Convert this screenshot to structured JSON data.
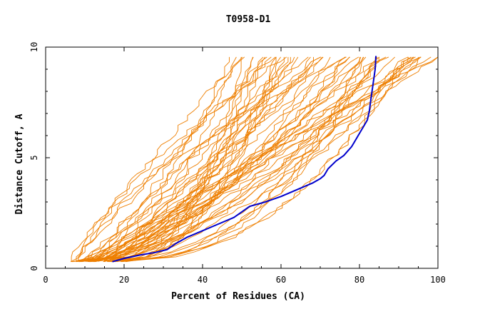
{
  "chart_data": {
    "type": "line",
    "title": "T0958-D1",
    "xlabel": "Percent of Residues (CA)",
    "ylabel": "Distance Cutoff, A",
    "xlim": [
      0,
      100
    ],
    "ylim": [
      0,
      10
    ],
    "x_ticks": [
      0,
      20,
      40,
      60,
      80,
      100
    ],
    "y_ticks": [
      0,
      5,
      10
    ],
    "grid": false,
    "colors": {
      "models": "#ee7f00",
      "highlight": "#0000cc"
    },
    "highlight_series": {
      "x": [
        17,
        20,
        24,
        28,
        31,
        33,
        36,
        40,
        44,
        48,
        50,
        52,
        56,
        60,
        64,
        68,
        70,
        71,
        72,
        74,
        76,
        77,
        78,
        79,
        80,
        81,
        82,
        82.5,
        82.8,
        83.2,
        83.6,
        84,
        84.2
      ],
      "y": [
        0.3,
        0.45,
        0.6,
        0.72,
        0.85,
        1.1,
        1.4,
        1.7,
        2.0,
        2.3,
        2.55,
        2.8,
        3.0,
        3.25,
        3.55,
        3.85,
        4.05,
        4.2,
        4.5,
        4.85,
        5.1,
        5.3,
        5.5,
        5.8,
        6.1,
        6.4,
        6.7,
        7.1,
        7.5,
        8.0,
        8.5,
        9.0,
        9.6
      ]
    },
    "model_count": 60
  }
}
